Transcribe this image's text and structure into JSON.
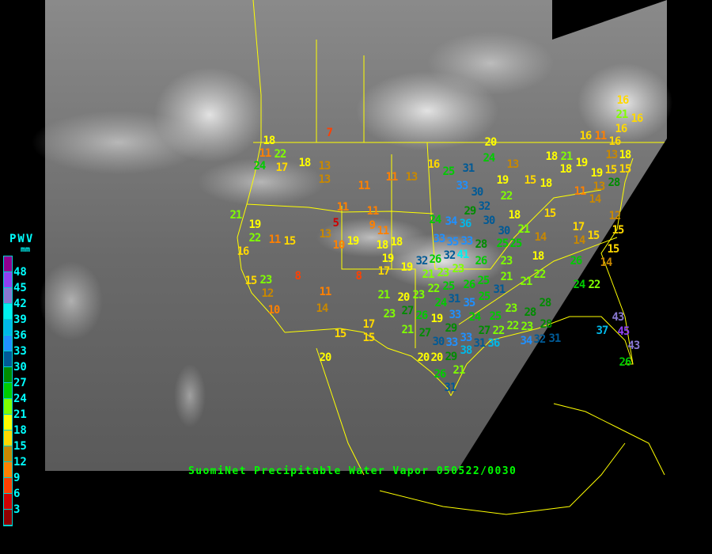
{
  "title": "SuomiNet Precipitable Water Vapor 050522/0030",
  "legend": {
    "title": "PWV",
    "unit": "mm",
    "ticks": [
      "48",
      "45",
      "42",
      "39",
      "36",
      "33",
      "30",
      "27",
      "24",
      "21",
      "18",
      "15",
      "12",
      "9",
      "6",
      "3"
    ],
    "colors": [
      "#900090",
      "#9040f0",
      "#8878d0",
      "#00f0f0",
      "#00b8e8",
      "#2090ff",
      "#005a96",
      "#008c00",
      "#00cc00",
      "#80ff00",
      "#ffff00",
      "#ffd800",
      "#c88800",
      "#ff8000",
      "#ff4000",
      "#d00000",
      "#900000"
    ]
  },
  "stations": [
    7,
    18,
    11,
    22,
    24,
    17,
    18,
    13,
    13,
    11,
    11,
    13,
    21,
    22,
    19,
    11,
    15,
    16,
    15,
    23,
    12,
    10,
    8,
    5,
    11,
    9,
    11,
    11,
    13,
    10,
    19,
    18,
    18,
    19,
    17,
    19,
    8,
    11,
    14,
    16,
    25,
    31,
    33,
    30,
    32,
    22,
    29,
    30,
    24,
    34,
    36,
    33,
    33,
    41,
    28,
    25,
    26,
    20,
    24,
    13,
    19,
    15,
    18,
    21,
    30,
    25,
    23,
    21,
    14,
    18,
    22,
    21,
    26,
    24,
    22,
    14,
    15,
    15,
    17,
    14,
    15,
    11,
    14,
    13,
    12,
    15,
    16,
    16,
    21,
    16,
    16,
    11,
    16,
    13,
    18,
    15,
    15,
    28,
    19,
    19,
    21,
    18,
    18,
    18,
    28,
    23,
    25,
    22,
    27,
    22,
    23,
    28,
    28,
    34,
    32,
    31,
    36,
    31,
    38,
    33,
    33,
    29,
    29,
    20,
    20,
    26,
    21,
    31,
    33,
    24,
    35,
    30,
    37,
    43,
    45,
    43,
    26,
    20,
    15,
    17,
    15,
    23,
    21,
    20,
    23,
    27,
    26,
    21,
    27,
    19,
    22,
    23,
    24,
    21,
    26,
    32,
    23,
    26,
    25,
    25,
    35,
    32,
    31,
    25,
    31
  ]
}
